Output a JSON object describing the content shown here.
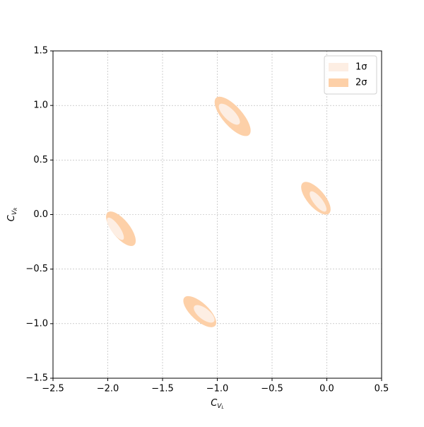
{
  "chart_data": {
    "type": "ellipse-contour",
    "x_label": "C",
    "x_label_sub": "V",
    "x_label_subsub": "L",
    "y_label": "C",
    "y_label_sub": "V",
    "y_label_subsub": "R",
    "xlim": [
      -2.5,
      0.5
    ],
    "ylim": [
      -1.5,
      1.5
    ],
    "xticks": [
      {
        "value": -2.5,
        "label": "−2.5"
      },
      {
        "value": -2.0,
        "label": "−2.0"
      },
      {
        "value": -1.5,
        "label": "−1.5"
      },
      {
        "value": -1.0,
        "label": "−1.0"
      },
      {
        "value": -0.5,
        "label": "−0.5"
      },
      {
        "value": 0,
        "label": "0.0"
      },
      0.5
    ],
    "yticks": [
      {
        "value": -1.5,
        "label": "−1.5"
      },
      {
        "value": -1.0,
        "label": "−1.0"
      },
      {
        "value": -0.5,
        "label": "−0.5"
      },
      {
        "value": 0,
        "label": "0.0"
      },
      0.5,
      {
        "value": 1.0,
        "label": "1.0"
      },
      1.5
    ],
    "grid": true,
    "legend": "upper-right",
    "series": [
      {
        "name": "2σ",
        "color": "#fdd0a8",
        "ellipses": [
          {
            "center": [
              -0.86,
              0.9
            ],
            "major": [
              0.15,
              -0.17
            ],
            "width": 0.09
          },
          {
            "center": [
              -0.1,
              0.15
            ],
            "major": [
              0.12,
              -0.14
            ],
            "width": 0.08
          },
          {
            "center": [
              -1.88,
              -0.13
            ],
            "major": [
              0.12,
              -0.15
            ],
            "width": 0.08
          },
          {
            "center": [
              -1.16,
              -0.89
            ],
            "major": [
              0.14,
              -0.13
            ],
            "width": 0.08
          }
        ]
      },
      {
        "name": "1σ",
        "color": "#fdeee3",
        "ellipses": [
          {
            "center": [
              -0.89,
              0.92
            ],
            "major": [
              0.09,
              -0.09
            ],
            "width": 0.05
          },
          {
            "center": [
              -0.08,
              0.12
            ],
            "major": [
              0.07,
              -0.09
            ],
            "width": 0.04
          },
          {
            "center": [
              -1.93,
              -0.13
            ],
            "major": [
              0.07,
              -0.1
            ],
            "width": 0.04
          },
          {
            "center": [
              -1.12,
              -0.91
            ],
            "major": [
              0.09,
              -0.07
            ],
            "width": 0.05
          }
        ]
      }
    ]
  }
}
